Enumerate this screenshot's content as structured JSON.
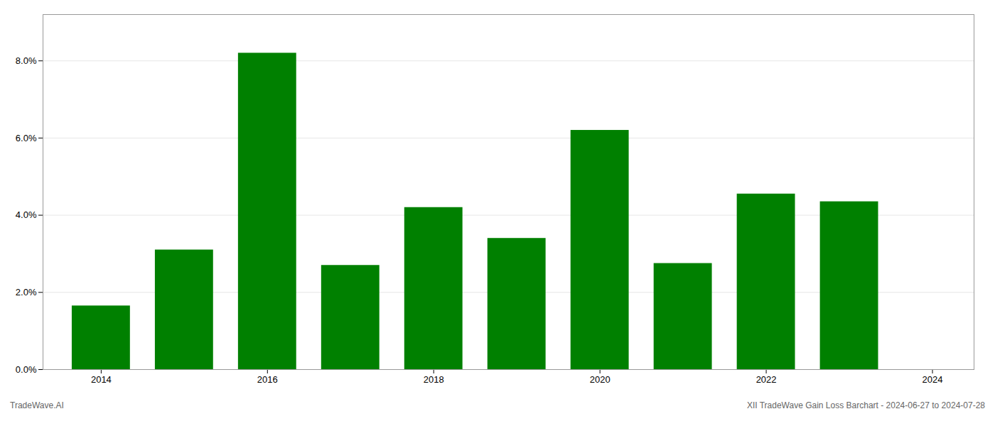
{
  "chart_data": {
    "type": "bar",
    "x": [
      2014,
      2015,
      2016,
      2017,
      2018,
      2019,
      2020,
      2021,
      2022,
      2023
    ],
    "values": [
      0.0165,
      0.031,
      0.082,
      0.027,
      0.042,
      0.034,
      0.062,
      0.0275,
      0.0455,
      0.0435
    ],
    "color": "#008000",
    "xlim": [
      2013.3,
      2024.5
    ],
    "xticks": [
      2014,
      2016,
      2018,
      2020,
      2022,
      2024
    ],
    "ylim": [
      0,
      0.092
    ],
    "yticks": [
      {
        "value": 0.0,
        "label": "0.0%"
      },
      {
        "value": 0.02,
        "label": "2.0%"
      },
      {
        "value": 0.04,
        "label": "4.0%"
      },
      {
        "value": 0.06,
        "label": "6.0%"
      },
      {
        "value": 0.08,
        "label": "8.0%"
      }
    ],
    "grid": true,
    "annotations": [
      "TradeWave.AI",
      "XII TradeWave Gain Loss Barchart - 2024-06-27 to 2024-07-28"
    ]
  }
}
